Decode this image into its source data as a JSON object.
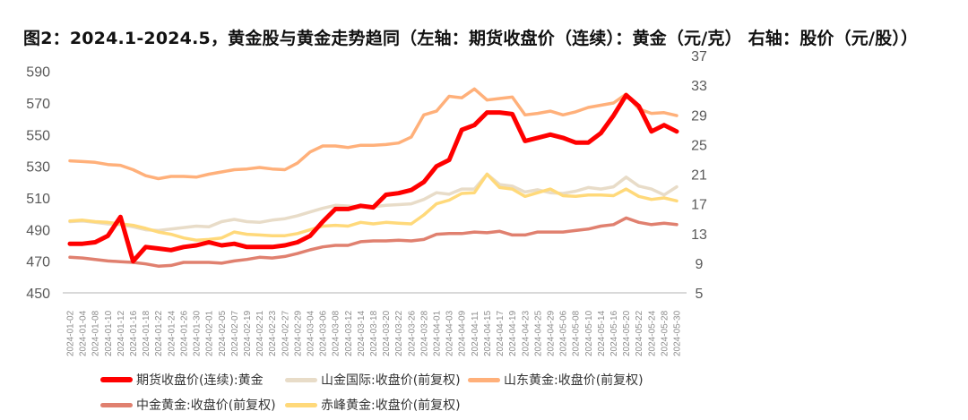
{
  "chart_data": {
    "type": "line",
    "title": "图2：2024.1-2024.5，黄金股与黄金走势趋同（左轴：期货收盘价（连续）：黄金（元/克） 右轴：股价（元/股））",
    "x": [
      "2024-01-02",
      "2024-01-04",
      "2024-01-08",
      "2024-01-10",
      "2024-01-12",
      "2024-01-16",
      "2024-01-18",
      "2024-01-22",
      "2024-01-24",
      "2024-01-26",
      "2024-01-30",
      "2024-02-01",
      "2024-02-05",
      "2024-02-07",
      "2024-02-19",
      "2024-02-21",
      "2024-02-23",
      "2024-02-27",
      "2024-02-29",
      "2024-03-04",
      "2024-03-06",
      "2024-03-08",
      "2024-03-12",
      "2024-03-14",
      "2024-03-18",
      "2024-03-20",
      "2024-03-22",
      "2024-03-26",
      "2024-03-28",
      "2024-04-01",
      "2024-04-03",
      "2024-04-09",
      "2024-04-11",
      "2024-04-15",
      "2024-04-17",
      "2024-04-19",
      "2024-04-23",
      "2024-04-25",
      "2024-04-29",
      "2024-05-06",
      "2024-05-08",
      "2024-05-10",
      "2024-05-14",
      "2024-05-16",
      "2024-05-20",
      "2024-05-22",
      "2024-05-24",
      "2024-05-28",
      "2024-05-30"
    ],
    "y_left": {
      "ylim": [
        450,
        600
      ],
      "ticks": [
        "450",
        "470",
        "490",
        "510",
        "530",
        "550",
        "570",
        "590"
      ]
    },
    "y_right": {
      "ylim": [
        5,
        37
      ],
      "ticks": [
        "5",
        "9",
        "13",
        "17",
        "21",
        "25",
        "29",
        "33",
        "37"
      ]
    },
    "grid": false,
    "legend_position": "bottom",
    "series": [
      {
        "name": "期货收盘价(连续):黄金",
        "axis": "left",
        "color": "#FF0000",
        "width": 5,
        "values": [
          481,
          481,
          482,
          486,
          498,
          470,
          479,
          478,
          477,
          479,
          480,
          482,
          480,
          481,
          479,
          479,
          479,
          480,
          482,
          486,
          495,
          503,
          503,
          505,
          504,
          512,
          513,
          515,
          520,
          530,
          534,
          553,
          556,
          564,
          564,
          563,
          546,
          548,
          550,
          548,
          545,
          545,
          551,
          562,
          575,
          568,
          552,
          556,
          552
        ]
      },
      {
        "name": "山金国际:收盘价(前复权)",
        "axis": "right",
        "color": "#E8DCC8",
        "width": 3.5,
        "values": [
          14.6,
          14.7,
          14.5,
          14.3,
          14.2,
          13.9,
          13.5,
          13.4,
          13.6,
          13.8,
          14.0,
          13.9,
          14.6,
          14.9,
          14.6,
          14.5,
          14.8,
          15.0,
          15.4,
          15.9,
          16.4,
          16.8,
          16.7,
          16.6,
          16.6,
          16.8,
          16.9,
          17.0,
          17.6,
          18.5,
          18.3,
          19.0,
          19.0,
          21.0,
          19.6,
          19.4,
          18.6,
          18.9,
          18.5,
          18.4,
          18.7,
          19.2,
          19.0,
          19.3,
          20.6,
          19.4,
          19.0,
          18.2,
          19.3
        ]
      },
      {
        "name": "山东黄金:收盘价(前复权)",
        "axis": "right",
        "color": "#FFB07A",
        "width": 3.5,
        "values": [
          22.8,
          22.7,
          22.6,
          22.3,
          22.2,
          21.6,
          20.8,
          20.4,
          20.7,
          20.7,
          20.6,
          21.0,
          21.3,
          21.6,
          21.7,
          21.9,
          21.7,
          21.6,
          22.5,
          24.0,
          24.8,
          24.8,
          24.6,
          24.9,
          24.9,
          25.0,
          25.2,
          26.0,
          29.0,
          29.5,
          31.5,
          31.3,
          32.5,
          31.0,
          31.2,
          31.4,
          29.0,
          29.2,
          29.5,
          29.0,
          29.4,
          30.0,
          30.3,
          30.6,
          31.8,
          29.8,
          29.2,
          29.3,
          28.9
        ]
      },
      {
        "name": "中金黄金:收盘价(前复权)",
        "axis": "right",
        "color": "#E0806F",
        "width": 3.5,
        "values": [
          9.8,
          9.7,
          9.5,
          9.3,
          9.2,
          9.1,
          8.9,
          8.6,
          8.7,
          9.1,
          9.1,
          9.1,
          9.0,
          9.3,
          9.5,
          9.8,
          9.7,
          9.9,
          10.3,
          10.8,
          11.2,
          11.4,
          11.4,
          11.9,
          12.0,
          12.0,
          12.1,
          12.0,
          12.2,
          12.9,
          13.0,
          13.0,
          13.2,
          13.1,
          13.3,
          12.8,
          12.8,
          13.2,
          13.2,
          13.2,
          13.4,
          13.6,
          14.0,
          14.2,
          15.1,
          14.5,
          14.2,
          14.4,
          14.2
        ]
      },
      {
        "name": "赤峰黄金:收盘价(前复权)",
        "axis": "right",
        "color": "#FFD97A",
        "width": 3.5,
        "values": [
          14.7,
          14.8,
          14.6,
          14.5,
          14.3,
          14.1,
          13.7,
          13.2,
          12.9,
          12.4,
          12.1,
          12.2,
          12.4,
          13.2,
          12.9,
          12.8,
          12.7,
          12.7,
          13.0,
          13.5,
          14.0,
          14.1,
          14.0,
          14.5,
          14.3,
          14.5,
          14.4,
          14.3,
          15.5,
          17.0,
          17.5,
          18.4,
          18.5,
          21.0,
          19.2,
          19.0,
          18.0,
          18.5,
          19.0,
          18.1,
          18.0,
          18.2,
          18.2,
          18.1,
          19.0,
          18.0,
          17.6,
          17.8,
          17.4
        ]
      }
    ]
  }
}
